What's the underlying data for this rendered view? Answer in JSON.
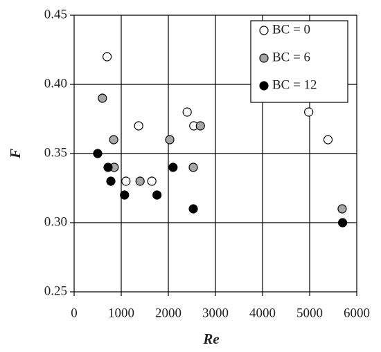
{
  "chart_data": {
    "type": "scatter",
    "xlabel": "Re",
    "ylabel": "F",
    "xlim": [
      0,
      6000
    ],
    "xticks": [
      0,
      1000,
      2000,
      3000,
      4000,
      5000,
      6000
    ],
    "ylim": [
      0.25,
      0.45
    ],
    "yticks": [
      0.25,
      {
        "value": 0.3,
        "label": "0.30"
      },
      0.35,
      {
        "value": 0.4,
        "label": "0.40"
      },
      0.45
    ],
    "grid": true,
    "legend": "upper right",
    "series": [
      {
        "name": "BC = 0",
        "color": "#ffffff",
        "x": [
          700,
          1370,
          1100,
          1650,
          2400,
          2540,
          4980,
          5390
        ],
        "values": [
          0.42,
          0.37,
          0.33,
          0.33,
          0.38,
          0.37,
          0.38,
          0.36
        ]
      },
      {
        "name": "BC = 6",
        "color": "#a6a6a6",
        "x": [
          600,
          840,
          850,
          1400,
          2030,
          2530,
          2680,
          5690
        ],
        "values": [
          0.39,
          0.36,
          0.34,
          0.33,
          0.36,
          0.34,
          0.37,
          0.31
        ]
      },
      {
        "name": "BC = 12",
        "color": "#000000",
        "x": [
          500,
          720,
          780,
          1070,
          1760,
          2100,
          2530,
          5700
        ],
        "values": [
          0.35,
          0.34,
          0.33,
          0.32,
          0.32,
          0.34,
          0.31,
          0.3
        ]
      }
    ]
  }
}
